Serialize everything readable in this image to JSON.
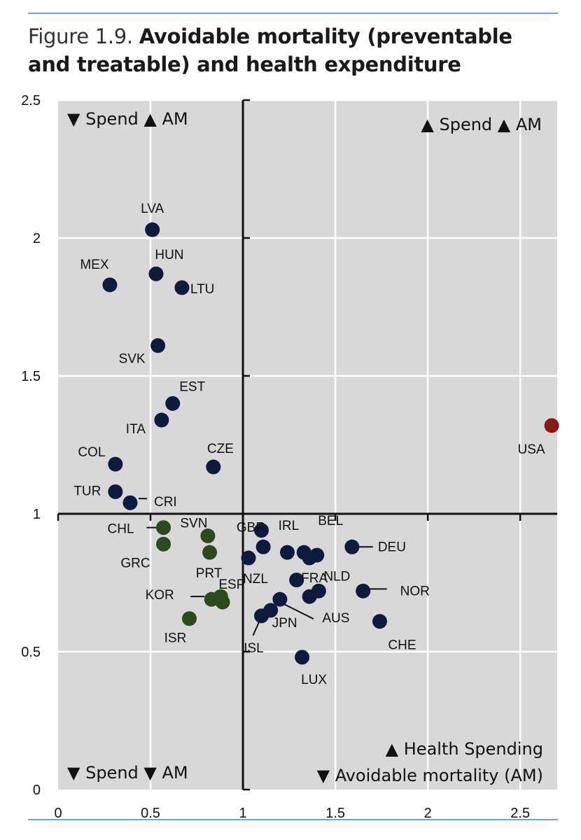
{
  "figure": {
    "number": "Figure 1.9.",
    "title": "Avoidable mortality (preventable and treatable) and health expenditure"
  },
  "quadrants": {
    "top_left": "▼ Spend ▲ AM",
    "top_right": "▲ Spend ▲ AM",
    "bottom_left": "▼ Spend ▼ AM",
    "bottom_right_line1": "▲ Health Spending",
    "bottom_right_line2": "▼ Avoidable mortality (AM)"
  },
  "chart_data": {
    "type": "scatter",
    "title": "Avoidable mortality (preventable and treatable) and health expenditure",
    "xlabel": "",
    "ylabel": "",
    "xlim": [
      0,
      2.7
    ],
    "ylim": [
      0,
      2.5
    ],
    "x_ticks": [
      "0",
      "0.5",
      "1",
      "1.5",
      "2",
      "2.5"
    ],
    "y_ticks": [
      "0",
      "0.5",
      "1",
      "1.5",
      "2",
      "2.5"
    ],
    "reference_lines": {
      "x": 1,
      "y": 1
    },
    "grid": true,
    "colors": {
      "navy": "#0d1b3e",
      "green": "#2b4a1e",
      "red": "#8b1a14",
      "plot_bg": "#d8d8d8"
    },
    "points": [
      {
        "label": "LVA",
        "x": 0.51,
        "y": 2.03,
        "color": "navy"
      },
      {
        "label": "HUN",
        "x": 0.53,
        "y": 1.87,
        "color": "navy"
      },
      {
        "label": "MEX",
        "x": 0.28,
        "y": 1.83,
        "color": "navy"
      },
      {
        "label": "LTU",
        "x": 0.67,
        "y": 1.82,
        "color": "navy"
      },
      {
        "label": "SVK",
        "x": 0.54,
        "y": 1.61,
        "color": "navy"
      },
      {
        "label": "EST",
        "x": 0.62,
        "y": 1.4,
        "color": "navy"
      },
      {
        "label": "ITA",
        "x": 0.56,
        "y": 1.34,
        "color": "navy"
      },
      {
        "label": "COL",
        "x": 0.31,
        "y": 1.18,
        "color": "navy"
      },
      {
        "label": "CZE",
        "x": 0.84,
        "y": 1.17,
        "color": "navy"
      },
      {
        "label": "TUR",
        "x": 0.31,
        "y": 1.08,
        "color": "navy"
      },
      {
        "label": "CRI",
        "x": 0.39,
        "y": 1.04,
        "color": "navy"
      },
      {
        "label": "CHL",
        "x": 0.57,
        "y": 0.95,
        "color": "green"
      },
      {
        "label": "GRC",
        "x": 0.57,
        "y": 0.89,
        "color": "green"
      },
      {
        "label": "SVN",
        "x": 0.81,
        "y": 0.92,
        "color": "green"
      },
      {
        "label": "PRT",
        "x": 0.82,
        "y": 0.86,
        "color": "green"
      },
      {
        "label": "KOR",
        "x": 0.83,
        "y": 0.69,
        "color": "green"
      },
      {
        "label": "ESP",
        "x": 0.88,
        "y": 0.7,
        "color": "green"
      },
      {
        "label": "",
        "x": 0.89,
        "y": 0.68,
        "color": "green"
      },
      {
        "label": "ISR",
        "x": 0.71,
        "y": 0.62,
        "color": "green"
      },
      {
        "label": "GBR",
        "x": 1.1,
        "y": 0.94,
        "color": "navy"
      },
      {
        "label": "",
        "x": 1.11,
        "y": 0.88,
        "color": "navy"
      },
      {
        "label": "NZL",
        "x": 1.03,
        "y": 0.84,
        "color": "navy"
      },
      {
        "label": "IRL",
        "x": 1.24,
        "y": 0.86,
        "color": "navy"
      },
      {
        "label": "BEL",
        "x": 1.33,
        "y": 0.86,
        "color": "navy"
      },
      {
        "label": "FRA",
        "x": 1.36,
        "y": 0.84,
        "color": "navy"
      },
      {
        "label": "",
        "x": 1.4,
        "y": 0.85,
        "color": "navy"
      },
      {
        "label": "DEU",
        "x": 1.59,
        "y": 0.88,
        "color": "navy"
      },
      {
        "label": "NLD",
        "x": 1.41,
        "y": 0.72,
        "color": "navy"
      },
      {
        "label": "",
        "x": 1.29,
        "y": 0.76,
        "color": "navy"
      },
      {
        "label": "",
        "x": 1.36,
        "y": 0.7,
        "color": "navy"
      },
      {
        "label": "NOR",
        "x": 1.65,
        "y": 0.72,
        "color": "navy"
      },
      {
        "label": "AUS",
        "x": 1.2,
        "y": 0.69,
        "color": "navy"
      },
      {
        "label": "JPN",
        "x": 1.15,
        "y": 0.65,
        "color": "navy"
      },
      {
        "label": "ISL",
        "x": 1.1,
        "y": 0.63,
        "color": "navy"
      },
      {
        "label": "CHE",
        "x": 1.74,
        "y": 0.61,
        "color": "navy"
      },
      {
        "label": "LUX",
        "x": 1.32,
        "y": 0.48,
        "color": "navy"
      },
      {
        "label": "USA",
        "x": 2.67,
        "y": 1.32,
        "color": "red"
      }
    ]
  }
}
